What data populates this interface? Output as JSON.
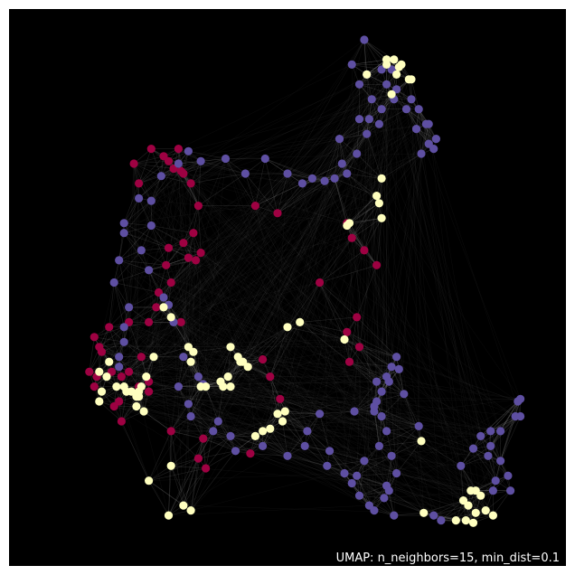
{
  "chart_data": {
    "type": "scatter",
    "title": "",
    "xlabel": "",
    "ylabel": "",
    "xlim": [
      0,
      100
    ],
    "ylim": [
      0,
      100
    ],
    "grid": false,
    "legend": "none",
    "background_color": "#000000",
    "edge_color": "#ffffff",
    "annotation": "UMAP: n_neighbors=15, min_dist=0.1",
    "series": [
      {
        "color": "#9e0142",
        "x": [
          19,
          20,
          22.5,
          25,
          26,
          27,
          28.5,
          28,
          29,
          30.5,
          32,
          31,
          32.5,
          29,
          30,
          31.5,
          26,
          25.5,
          24,
          23.5,
          26.5,
          28.5,
          22,
          20.5,
          18,
          16.5,
          16,
          18,
          14,
          11,
          12,
          12.5,
          14.5,
          11.5,
          10,
          11,
          15,
          16.5,
          22,
          26.5,
          22,
          20,
          33,
          32,
          33.5,
          43.5,
          48,
          62,
          63,
          65.5,
          68,
          56.5,
          64,
          62,
          64.5,
          62.5,
          45,
          46.5,
          48.5,
          42.5
        ],
        "y": [
          75,
          71,
          78,
          76.5,
          75.5,
          74,
          73.5,
          78,
          73,
          71,
          66.5,
          61,
          57,
          59,
          56,
          55.5,
          58,
          54.5,
          49,
          46,
          51,
          43,
          43,
          36,
          33,
          32,
          27,
          43,
          42,
          40,
          38,
          37,
          33,
          32,
          33,
          30,
          26,
          23,
          29,
          21,
          31,
          30,
          19.5,
          15.5,
          13.5,
          66.5,
          65,
          63,
          60,
          57.5,
          54.5,
          51,
          44,
          41,
          38,
          35,
          35.5,
          32,
          27.5,
          16.5
        ]
      },
      {
        "color": "#5e4fa2",
        "x": [
          65.5,
          63,
          64.5,
          66,
          69,
          71,
          70,
          72,
          75,
          76.5,
          78,
          78.5,
          77,
          79.5,
          80,
          78.5,
          76,
          74,
          71.5,
          69,
          68.5,
          66,
          64,
          62,
          66.5,
          64.5,
          67,
          60.5,
          61,
          59.5,
          57.5,
          55,
          53,
          50,
          45.5,
          41.5,
          37.5,
          32.5,
          30,
          28,
          24.5,
          22.5,
          20,
          17,
          17,
          16,
          15,
          18,
          17,
          17,
          16,
          16,
          22.5,
          20.5,
          22,
          25,
          26,
          27,
          29,
          28,
          33,
          32,
          30,
          30.5,
          35,
          36,
          38.5,
          39.5,
          45,
          50,
          58.5,
          58,
          61.5,
          63,
          64.5,
          66.5,
          67.5,
          70,
          72,
          71,
          68.5,
          70,
          69,
          68,
          70.5,
          72.5,
          73.5,
          76.5,
          85,
          87.5,
          89,
          90.5,
          92,
          91.5,
          95,
          94.5,
          93,
          91,
          91,
          93,
          96,
          97,
          97,
          96.5,
          72,
          71,
          70,
          67.5,
          69,
          68,
          56.5,
          54,
          53.5,
          63.5,
          67.5,
          65.5,
          64,
          69.5,
          71.5,
          79.5,
          81,
          70.5
        ],
        "y": [
          100,
          95,
          91,
          93,
          94,
          94,
          91,
          90,
          88,
          86,
          83,
          79,
          77,
          78,
          80,
          83,
          82,
          86,
          88,
          86,
          83,
          81,
          77,
          73,
          84,
          84,
          88,
          80,
          75,
          72,
          71.5,
          72,
          71,
          73,
          76,
          73,
          76,
          75.5,
          77.5,
          75,
          72.5,
          67.5,
          68,
          63,
          61,
          55.5,
          51,
          46,
          42,
          39,
          36,
          34,
          62.5,
          57.5,
          53.5,
          48,
          46.5,
          43,
          36,
          30,
          30.5,
          32,
          26.5,
          24,
          21,
          23,
          20,
          17,
          18,
          16,
          17,
          14,
          12.5,
          10.5,
          8,
          6,
          5,
          10,
          12.5,
          16,
          18,
          21,
          24,
          27,
          31,
          33.5,
          28.5,
          22,
          14,
          17.5,
          20,
          16,
          11,
          9,
          9,
          12,
          15,
          18,
          21,
          21,
          24,
          24,
          27.5,
          27,
          36,
          34,
          32,
          26,
          29,
          31,
          24.5,
          21,
          18,
          25,
          25,
          15,
          12,
          7.5,
          4,
          4,
          3,
          9
        ]
      },
      {
        "color": "#ffffbf",
        "x": [
          70,
          71,
          66,
          70,
          72,
          74.5,
          75,
          72.5,
          71.5,
          73,
          70,
          62,
          62.5,
          69,
          68,
          68.5,
          69,
          49,
          48,
          49.5,
          46.5,
          45,
          43.5,
          50,
          52.5,
          38.5,
          40,
          41,
          40.5,
          42,
          38,
          36.5,
          38.5,
          37,
          33.5,
          32.5,
          30.5,
          31,
          30,
          26.5,
          25,
          23,
          21.5,
          20,
          17.5,
          19.5,
          19.5,
          21,
          12,
          12.5,
          13.5,
          12,
          14,
          15.5,
          17,
          20,
          20.5,
          18.5,
          26.5,
          22,
          30.5,
          29,
          26,
          86.5,
          85.5,
          87,
          88,
          89,
          91.5,
          90,
          88,
          87.5,
          86,
          84,
          77.5,
          77,
          61.5
        ],
        "y": [
          96,
          89,
          93,
          95,
          93,
          92,
          92,
          94.5,
          96,
          95,
          96,
          62.5,
          63,
          72,
          68.5,
          67,
          64,
          23,
          24.5,
          25,
          21.5,
          21,
          20,
          42,
          43,
          38,
          36,
          35,
          35,
          34,
          32,
          31,
          30,
          30,
          30,
          30,
          35,
          37,
          38,
          44,
          46,
          36,
          32,
          29,
          29,
          28,
          26,
          25,
          27,
          29,
          32,
          33,
          35,
          30,
          30,
          28,
          30,
          29,
          14,
          11,
          5,
          6,
          4,
          6,
          7,
          9,
          9,
          8,
          4,
          5,
          4.5,
          2.5,
          3,
          3,
          4.5,
          19,
          39.5
        ]
      }
    ]
  }
}
